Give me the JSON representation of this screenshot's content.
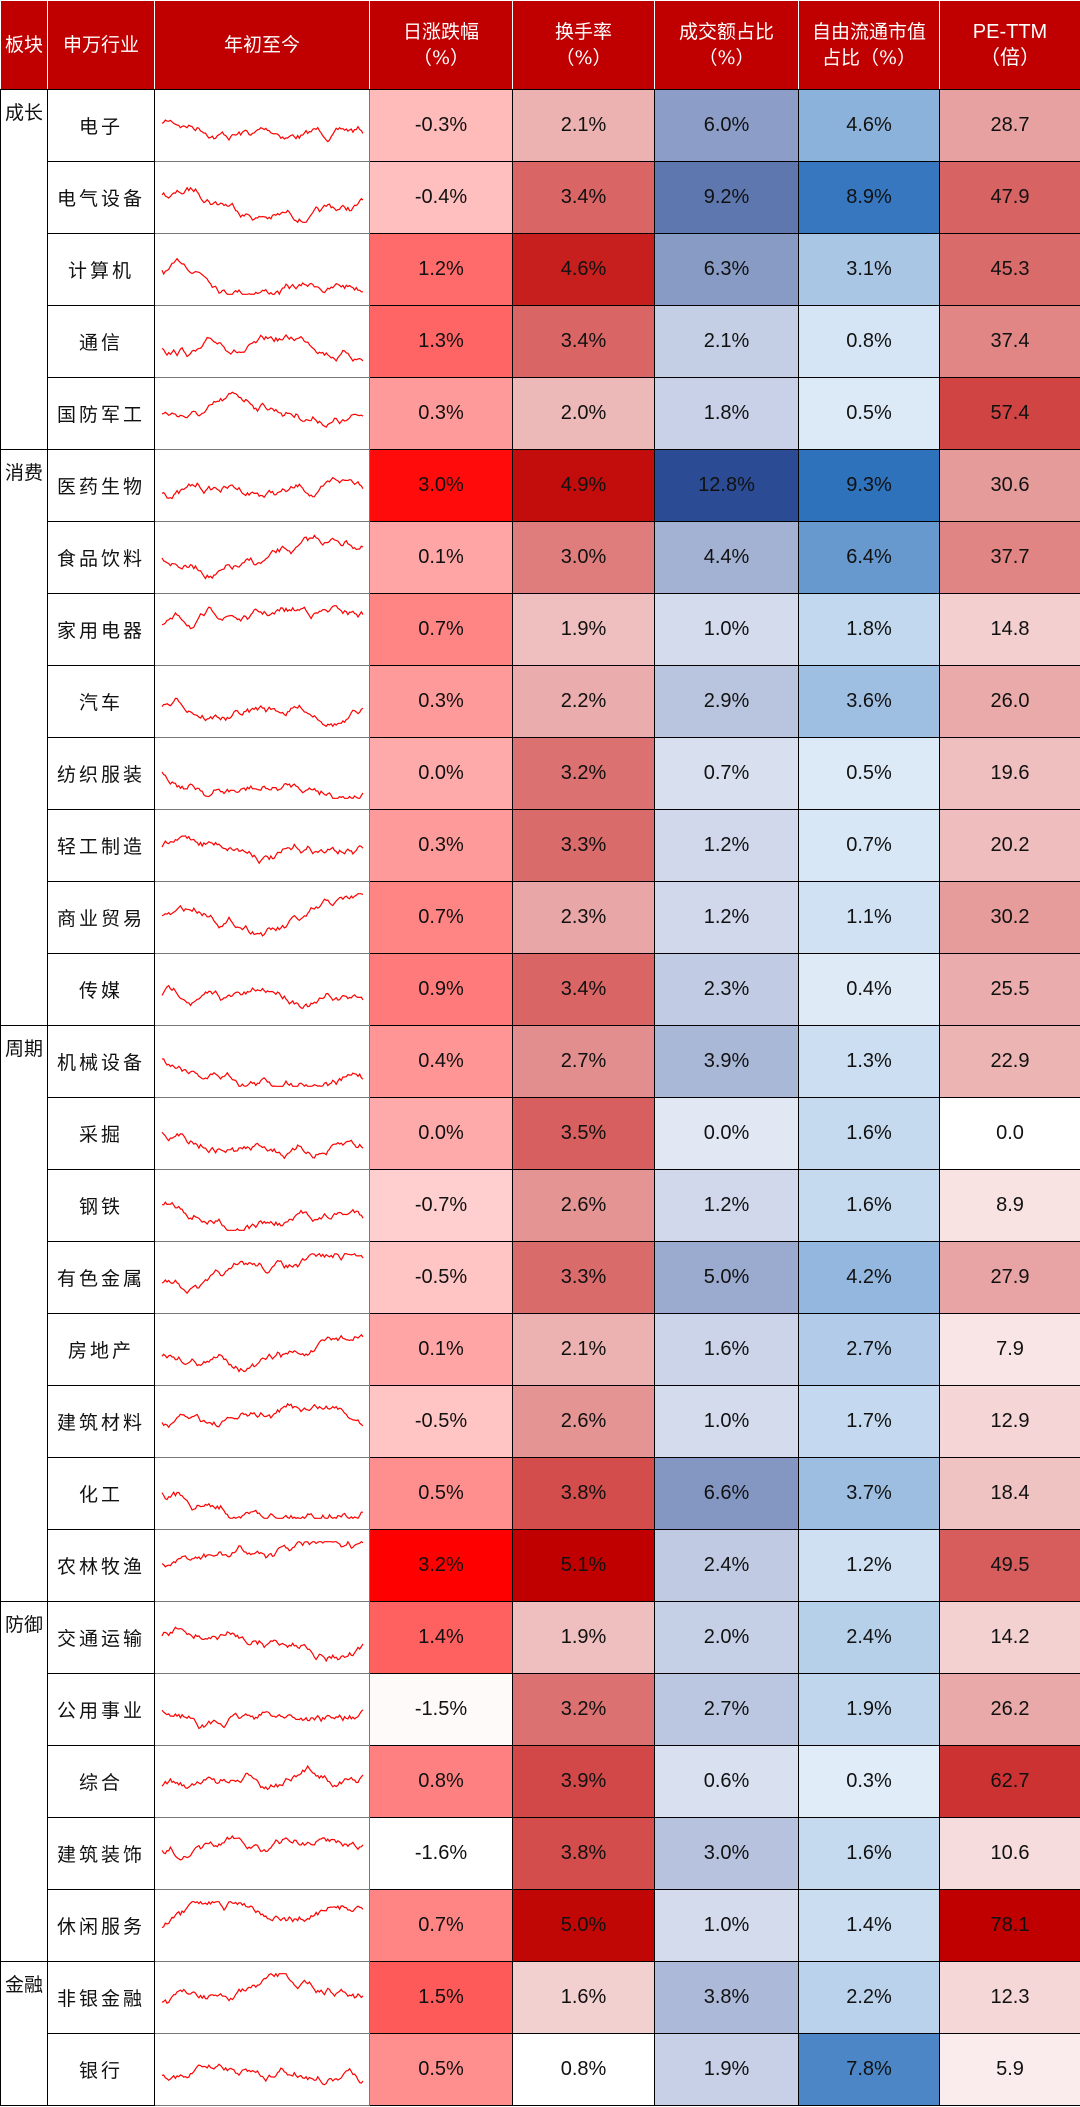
{
  "header": {
    "columns": [
      [
        "板块"
      ],
      [
        "申万行业"
      ],
      [
        "年初至今"
      ],
      [
        "日涨跌幅",
        "（%）"
      ],
      [
        "换手率",
        "（%）"
      ],
      [
        "成交额占比",
        "（%）"
      ],
      [
        "自由流通市值",
        "占比（%）"
      ],
      [
        "PE-TTM",
        "（倍）"
      ]
    ]
  },
  "sectors": [
    {
      "name": "成长",
      "rows": [
        [
          "电子",
          "-0.3%",
          "2.1%",
          "6.0%",
          "4.6%",
          "28.7"
        ],
        [
          "电气设备",
          "-0.4%",
          "3.4%",
          "9.2%",
          "8.9%",
          "47.9"
        ],
        [
          "计算机",
          "1.2%",
          "4.6%",
          "6.3%",
          "3.1%",
          "45.3"
        ],
        [
          "通信",
          "1.3%",
          "3.4%",
          "2.1%",
          "0.8%",
          "37.4"
        ],
        [
          "国防军工",
          "0.3%",
          "2.0%",
          "1.8%",
          "0.5%",
          "57.4"
        ]
      ]
    },
    {
      "name": "消费",
      "rows": [
        [
          "医药生物",
          "3.0%",
          "4.9%",
          "12.8%",
          "9.3%",
          "30.6"
        ],
        [
          "食品饮料",
          "0.1%",
          "3.0%",
          "4.4%",
          "6.4%",
          "37.7"
        ],
        [
          "家用电器",
          "0.7%",
          "1.9%",
          "1.0%",
          "1.8%",
          "14.8"
        ],
        [
          "汽车",
          "0.3%",
          "2.2%",
          "2.9%",
          "3.6%",
          "26.0"
        ],
        [
          "纺织服装",
          "0.0%",
          "3.2%",
          "0.7%",
          "0.5%",
          "19.6"
        ],
        [
          "轻工制造",
          "0.3%",
          "3.3%",
          "1.2%",
          "0.7%",
          "20.2"
        ],
        [
          "商业贸易",
          "0.7%",
          "2.3%",
          "1.2%",
          "1.1%",
          "30.2"
        ],
        [
          "传媒",
          "0.9%",
          "3.4%",
          "2.3%",
          "0.4%",
          "25.5"
        ]
      ]
    },
    {
      "name": "周期",
      "rows": [
        [
          "机械设备",
          "0.4%",
          "2.7%",
          "3.9%",
          "1.3%",
          "22.9"
        ],
        [
          "采掘",
          "0.0%",
          "3.5%",
          "0.0%",
          "1.6%",
          "0.0"
        ],
        [
          "钢铁",
          "-0.7%",
          "2.6%",
          "1.2%",
          "1.6%",
          "8.9"
        ],
        [
          "有色金属",
          "-0.5%",
          "3.3%",
          "5.0%",
          "4.2%",
          "27.9"
        ],
        [
          "房地产",
          "0.1%",
          "2.1%",
          "1.6%",
          "2.7%",
          "7.9"
        ],
        [
          "建筑材料",
          "-0.5%",
          "2.6%",
          "1.0%",
          "1.7%",
          "12.9"
        ],
        [
          "化工",
          "0.5%",
          "3.8%",
          "6.6%",
          "3.7%",
          "18.4"
        ],
        [
          "农林牧渔",
          "3.2%",
          "5.1%",
          "2.4%",
          "1.2%",
          "49.5"
        ]
      ]
    },
    {
      "name": "防御",
      "rows": [
        [
          "交通运输",
          "1.4%",
          "1.9%",
          "2.0%",
          "2.4%",
          "14.2"
        ],
        [
          "公用事业",
          "-1.5%",
          "3.2%",
          "2.7%",
          "1.9%",
          "26.2"
        ],
        [
          "综合",
          "0.8%",
          "3.9%",
          "0.6%",
          "0.3%",
          "62.7"
        ],
        [
          "建筑装饰",
          "-1.6%",
          "3.8%",
          "3.0%",
          "1.6%",
          "10.6"
        ],
        [
          "休闲服务",
          "0.7%",
          "5.0%",
          "1.0%",
          "1.4%",
          "78.1"
        ]
      ]
    },
    {
      "name": "金融",
      "rows": [
        [
          "非银金融",
          "1.5%",
          "1.6%",
          "3.8%",
          "2.2%",
          "12.3"
        ],
        [
          "银行",
          "0.5%",
          "0.8%",
          "1.9%",
          "7.8%",
          "5.9"
        ]
      ]
    }
  ]
}
